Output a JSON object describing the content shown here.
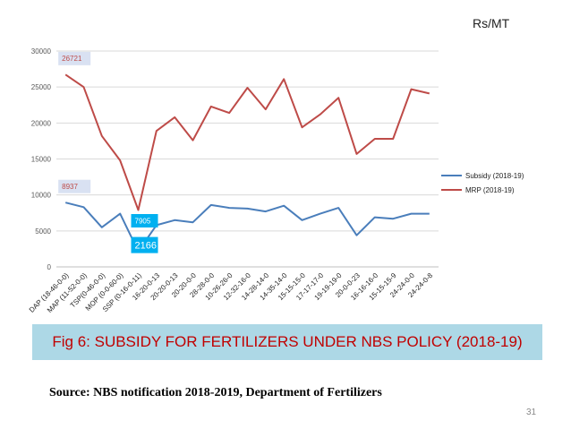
{
  "unit": "Rs/MT",
  "caption": "Fig 6: SUBSIDY FOR FERTILIZERS UNDER NBS POLICY (2018-19)",
  "source": "Source: NBS notification 2018-2019, Department of Fertilizers",
  "page_number": "31",
  "colors": {
    "subsidy": "#4a7ebb",
    "mrp": "#be4b48",
    "caption_bg": "#add8e6",
    "caption_text": "#c00000",
    "callout_light": "#d9e1f2",
    "callout_blue": "#00b0f0"
  },
  "chart_data": {
    "type": "line",
    "title": "",
    "xlabel": "",
    "ylabel": "",
    "ylim": [
      0,
      30000
    ],
    "yticks": [
      "0",
      "5000",
      "10000",
      "15000",
      "20000",
      "25000",
      "30000"
    ],
    "grid": true,
    "legend_position": "right",
    "categories": [
      "DAP (18-46-0-0)",
      "MAP (11-52-0-0)",
      "TSP(0-46-0-0)",
      "MOP (0-0-60-0)",
      "SSP (0-16-0-11)",
      "16-20-0-13",
      "20-20-0-13",
      "20-20-0-0",
      "28-28-0-0",
      "10-26-26-0",
      "12-32-16-0",
      "14-28-14-0",
      "14-35-14-0",
      "15-15-15-0",
      "17-17-17-0",
      "19-19-19-0",
      "20-0-0-23",
      "16-16-16-0",
      "15-15-15-9",
      "24-24-0-0",
      "24-24-0-8"
    ],
    "series": [
      {
        "name": "Subsidy (2018-19)",
        "values": [
          8937,
          8300,
          5500,
          7400,
          2166,
          5800,
          6500,
          6200,
          8600,
          8200,
          8100,
          7700,
          8500,
          6500,
          7400,
          8200,
          4400,
          6900,
          6700,
          7400,
          7400
        ]
      },
      {
        "name": "MRP (2018-19)",
        "values": [
          26721,
          25000,
          18200,
          14800,
          7905,
          18900,
          20800,
          17600,
          22300,
          21400,
          24900,
          21900,
          26100,
          19400,
          21200,
          23500,
          15700,
          17800,
          17800,
          24700,
          24100
        ]
      }
    ],
    "annotations": [
      {
        "text": "26721",
        "series": 1,
        "index": 0,
        "style": "light"
      },
      {
        "text": "8937",
        "series": 0,
        "index": 0,
        "style": "light"
      },
      {
        "text": "7905",
        "series": 1,
        "index": 4,
        "style": "blue"
      },
      {
        "text": "2166",
        "series": 0,
        "index": 4,
        "style": "blue-large"
      }
    ]
  }
}
